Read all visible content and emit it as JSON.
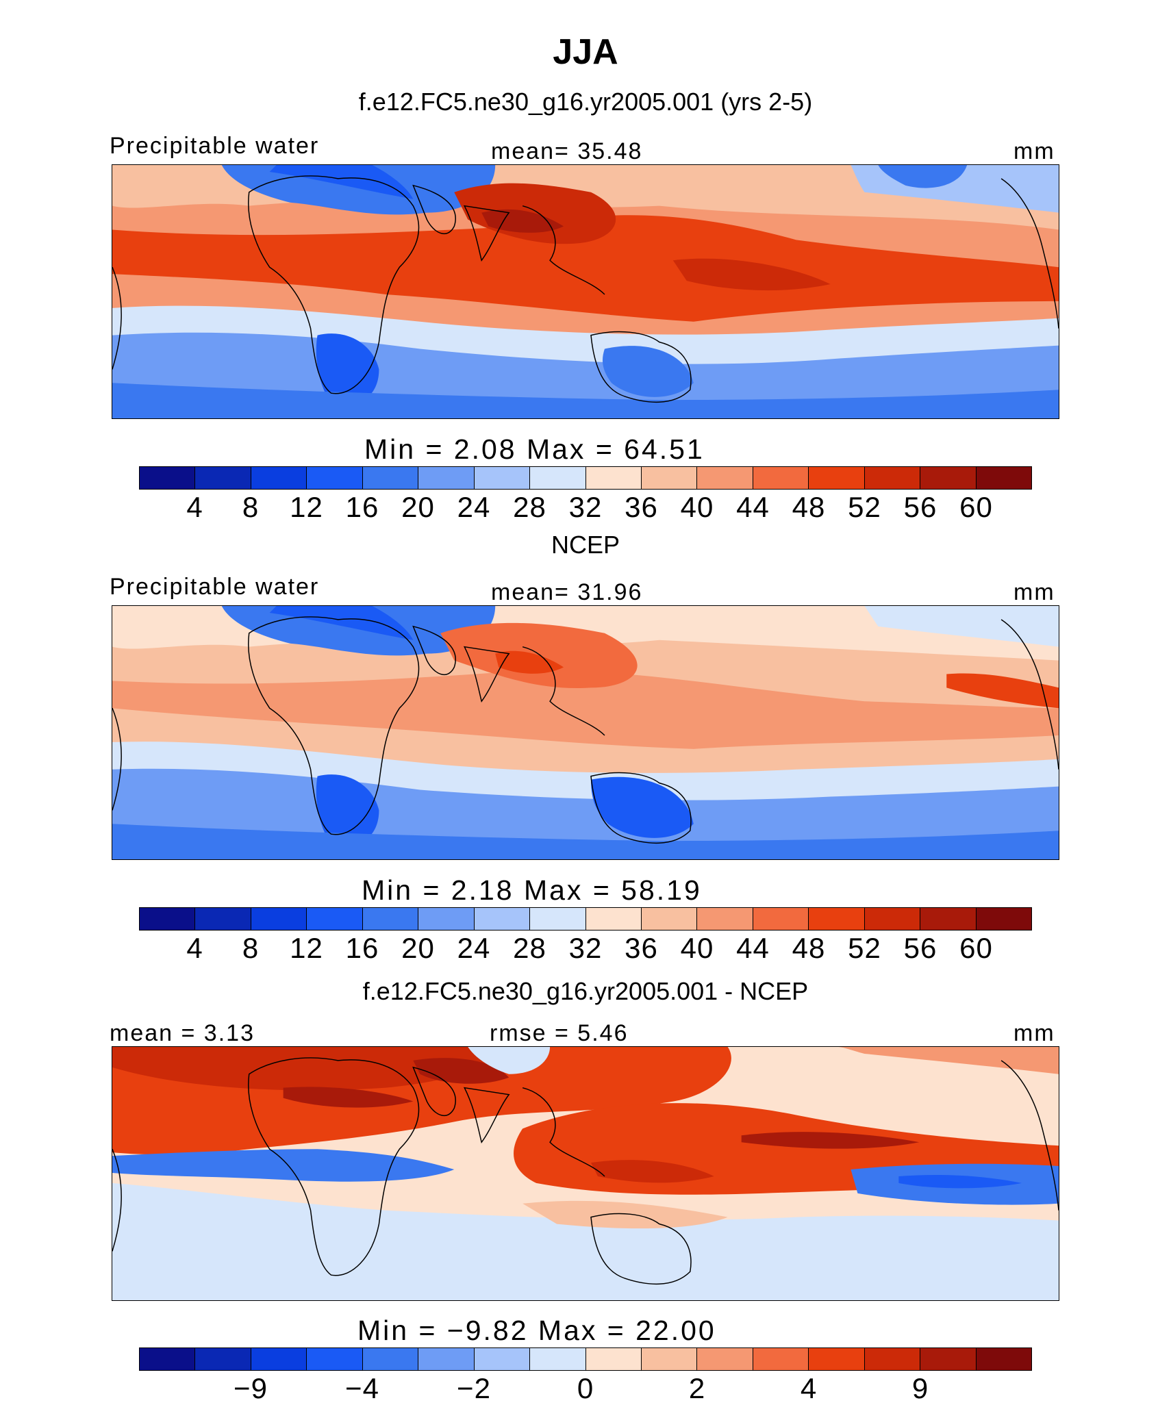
{
  "title": "JJA",
  "panels": [
    {
      "heading": "f.e12.FC5.ne30_g16.yr2005.001 (yrs 2-5)",
      "left_label": "Precipitable water",
      "center_label": "mean=   35.48",
      "right_label": "mm",
      "minmax": "Min  =     2.08  Max  =   64.51",
      "colorbar": {
        "colors": [
          "#0a0f8a",
          "#0a28b4",
          "#0a3ee0",
          "#1a5af5",
          "#3a78f0",
          "#6e9cf5",
          "#a6c4fa",
          "#d6e6fb",
          "#fde2cf",
          "#f8c0a0",
          "#f59872",
          "#f26a3e",
          "#e8400f",
          "#cc2a08",
          "#a81a0a",
          "#7e0a0a"
        ],
        "ticks": [
          "4",
          "8",
          "12",
          "16",
          "20",
          "24",
          "28",
          "32",
          "36",
          "40",
          "44",
          "48",
          "52",
          "56",
          "60"
        ]
      },
      "map_field": "Precipitable water (model)"
    },
    {
      "heading": "NCEP",
      "left_label": "Precipitable water",
      "center_label": "mean=   31.96",
      "right_label": "mm",
      "minmax": "Min  =     2.18  Max  =   58.19",
      "colorbar": {
        "colors": [
          "#0a0f8a",
          "#0a28b4",
          "#0a3ee0",
          "#1a5af5",
          "#3a78f0",
          "#6e9cf5",
          "#a6c4fa",
          "#d6e6fb",
          "#fde2cf",
          "#f8c0a0",
          "#f59872",
          "#f26a3e",
          "#e8400f",
          "#cc2a08",
          "#a81a0a",
          "#7e0a0a"
        ],
        "ticks": [
          "4",
          "8",
          "12",
          "16",
          "20",
          "24",
          "28",
          "32",
          "36",
          "40",
          "44",
          "48",
          "52",
          "56",
          "60"
        ]
      },
      "map_field": "Precipitable water (NCEP)"
    },
    {
      "heading": "f.e12.FC5.ne30_g16.yr2005.001 - NCEP",
      "left_label": "mean  =     3.13",
      "center_label": "rmse  =     5.46",
      "right_label": "mm",
      "minmax": "Min  =   −9.82  Max  =   22.00",
      "colorbar": {
        "colors": [
          "#0a0f8a",
          "#0a28b4",
          "#0a3ee0",
          "#1a5af5",
          "#3a78f0",
          "#6e9cf5",
          "#a6c4fa",
          "#d6e6fb",
          "#fde2cf",
          "#f8c0a0",
          "#f59872",
          "#f26a3e",
          "#e8400f",
          "#cc2a08",
          "#a81a0a",
          "#7e0a0a"
        ],
        "ticks": [
          "−9",
          "−4",
          "−2",
          "0",
          "2",
          "4",
          "9"
        ]
      },
      "map_field": "Precipitable water difference"
    }
  ]
}
